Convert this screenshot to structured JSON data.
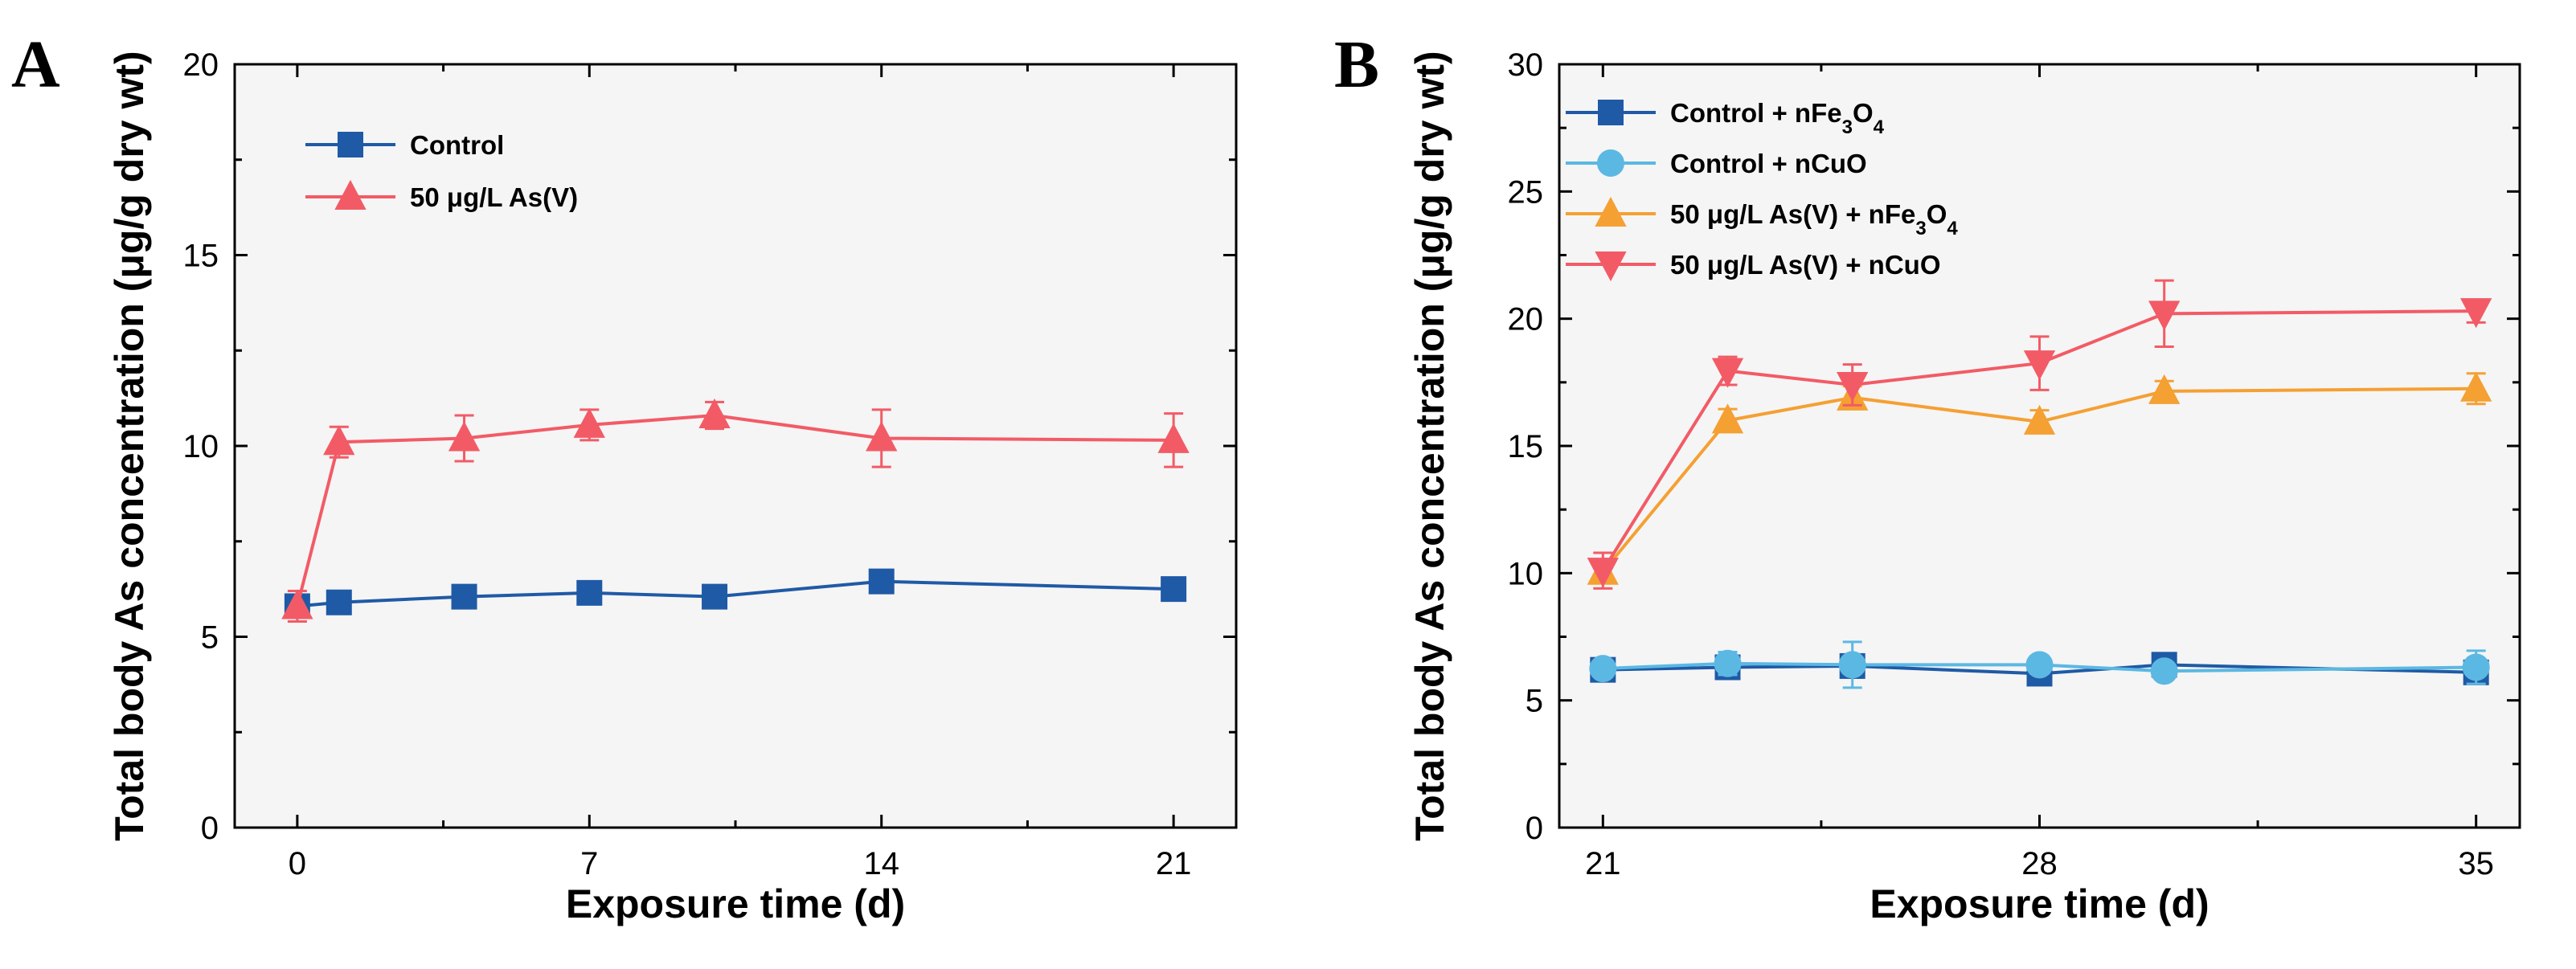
{
  "chart_data": [
    {
      "type": "line",
      "panel_label": "A",
      "xlabel": "Exposure time (d)",
      "ylabel": "Total body As concentration (μg/g dry wt)",
      "xlim": [
        -1.5,
        22.5
      ],
      "ylim": [
        0,
        20
      ],
      "xticks": [
        0,
        7,
        14,
        21
      ],
      "yticks": [
        0,
        5,
        10,
        15,
        20
      ],
      "legend_position": "top-left",
      "series": [
        {
          "name": "Control",
          "legend_label": "Control",
          "color": "#1f5aa6",
          "marker": "square",
          "x": [
            0,
            1,
            4,
            7,
            10,
            14,
            21
          ],
          "values": [
            5.8,
            5.9,
            6.05,
            6.15,
            6.05,
            6.45,
            6.25
          ],
          "errors": [
            0.2,
            0.1,
            0.15,
            0.15,
            0.15,
            0.15,
            0.15
          ]
        },
        {
          "name": "50 μg/L As(V)",
          "legend_label": "50 μg/L As(V)",
          "color": "#f25b66",
          "marker": "triangle-up",
          "x": [
            0,
            1,
            4,
            7,
            10,
            14,
            21
          ],
          "values": [
            5.8,
            10.1,
            10.2,
            10.55,
            10.8,
            10.2,
            10.15
          ],
          "errors": [
            0.4,
            0.4,
            0.6,
            0.4,
            0.35,
            0.75,
            0.7
          ]
        }
      ]
    },
    {
      "type": "line",
      "panel_label": "B",
      "xlabel": "Exposure time (d)",
      "ylabel": "Total body As concentration (μg/g dry wt)",
      "xlim": [
        20.3,
        35.7
      ],
      "ylim": [
        0,
        30
      ],
      "xticks": [
        21,
        28,
        35
      ],
      "yticks": [
        0,
        5,
        10,
        15,
        20,
        25,
        30
      ],
      "legend_position": "top-left",
      "series": [
        {
          "name": "Control + nFe3O4",
          "legend_label": "Control + nFe3O4",
          "color": "#1f5aa6",
          "marker": "square",
          "x": [
            21,
            23,
            25,
            28,
            30,
            35
          ],
          "values": [
            6.2,
            6.3,
            6.35,
            6.05,
            6.4,
            6.1
          ],
          "errors": [
            0.25,
            0.3,
            0.3,
            0.3,
            0.25,
            0.35
          ]
        },
        {
          "name": "Control + nCuO",
          "legend_label": "Control + nCuO",
          "color": "#5bb8e3",
          "marker": "circle",
          "x": [
            21,
            23,
            25,
            28,
            30,
            35
          ],
          "values": [
            6.25,
            6.45,
            6.4,
            6.4,
            6.15,
            6.3
          ],
          "errors": [
            0.2,
            0.45,
            0.9,
            0.35,
            0.25,
            0.65
          ]
        },
        {
          "name": "50 μg/L As(V) + nFe3O4",
          "legend_label": "50 μg/L As(V) + nFe3O4",
          "color": "#f5a033",
          "marker": "triangle-up",
          "x": [
            21,
            23,
            25,
            28,
            30,
            35
          ],
          "values": [
            10.05,
            16.0,
            16.9,
            15.95,
            17.15,
            17.25
          ],
          "errors": [
            0.35,
            0.45,
            0.45,
            0.45,
            0.4,
            0.6
          ]
        },
        {
          "name": "50 μg/L As(V) + nCuO",
          "legend_label": "50 μg/L As(V) + nCuO",
          "color": "#f25b66",
          "marker": "triangle-down",
          "x": [
            21,
            23,
            25,
            28,
            30,
            35
          ],
          "values": [
            10.1,
            17.95,
            17.4,
            18.25,
            20.2,
            20.3
          ],
          "errors": [
            0.7,
            0.55,
            0.8,
            1.05,
            1.3,
            0.45
          ]
        }
      ]
    }
  ]
}
